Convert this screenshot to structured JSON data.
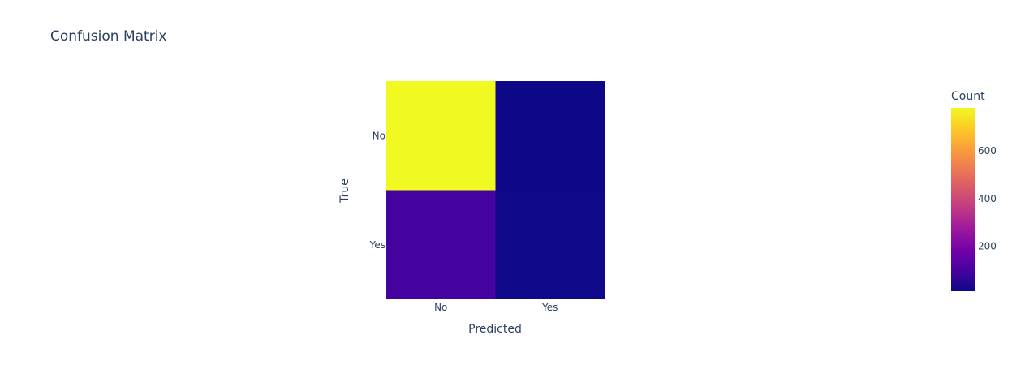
{
  "chart_data": {
    "type": "heatmap",
    "title": "Confusion Matrix",
    "xlabel": "Predicted",
    "ylabel": "True",
    "x_categories": [
      "No",
      "Yes"
    ],
    "y_categories": [
      "No",
      "Yes"
    ],
    "z": [
      [
        780,
        12
      ],
      [
        95,
        15
      ]
    ],
    "colorbar": {
      "title": "Count",
      "range": [
        12,
        780
      ],
      "ticks": [
        200,
        400,
        600
      ],
      "colorscale": [
        "#0d0887",
        "#46039f",
        "#7201a8",
        "#9c179e",
        "#bd3786",
        "#d8576b",
        "#ed7953",
        "#fb9f3a",
        "#fdca26",
        "#f0f921"
      ]
    }
  }
}
